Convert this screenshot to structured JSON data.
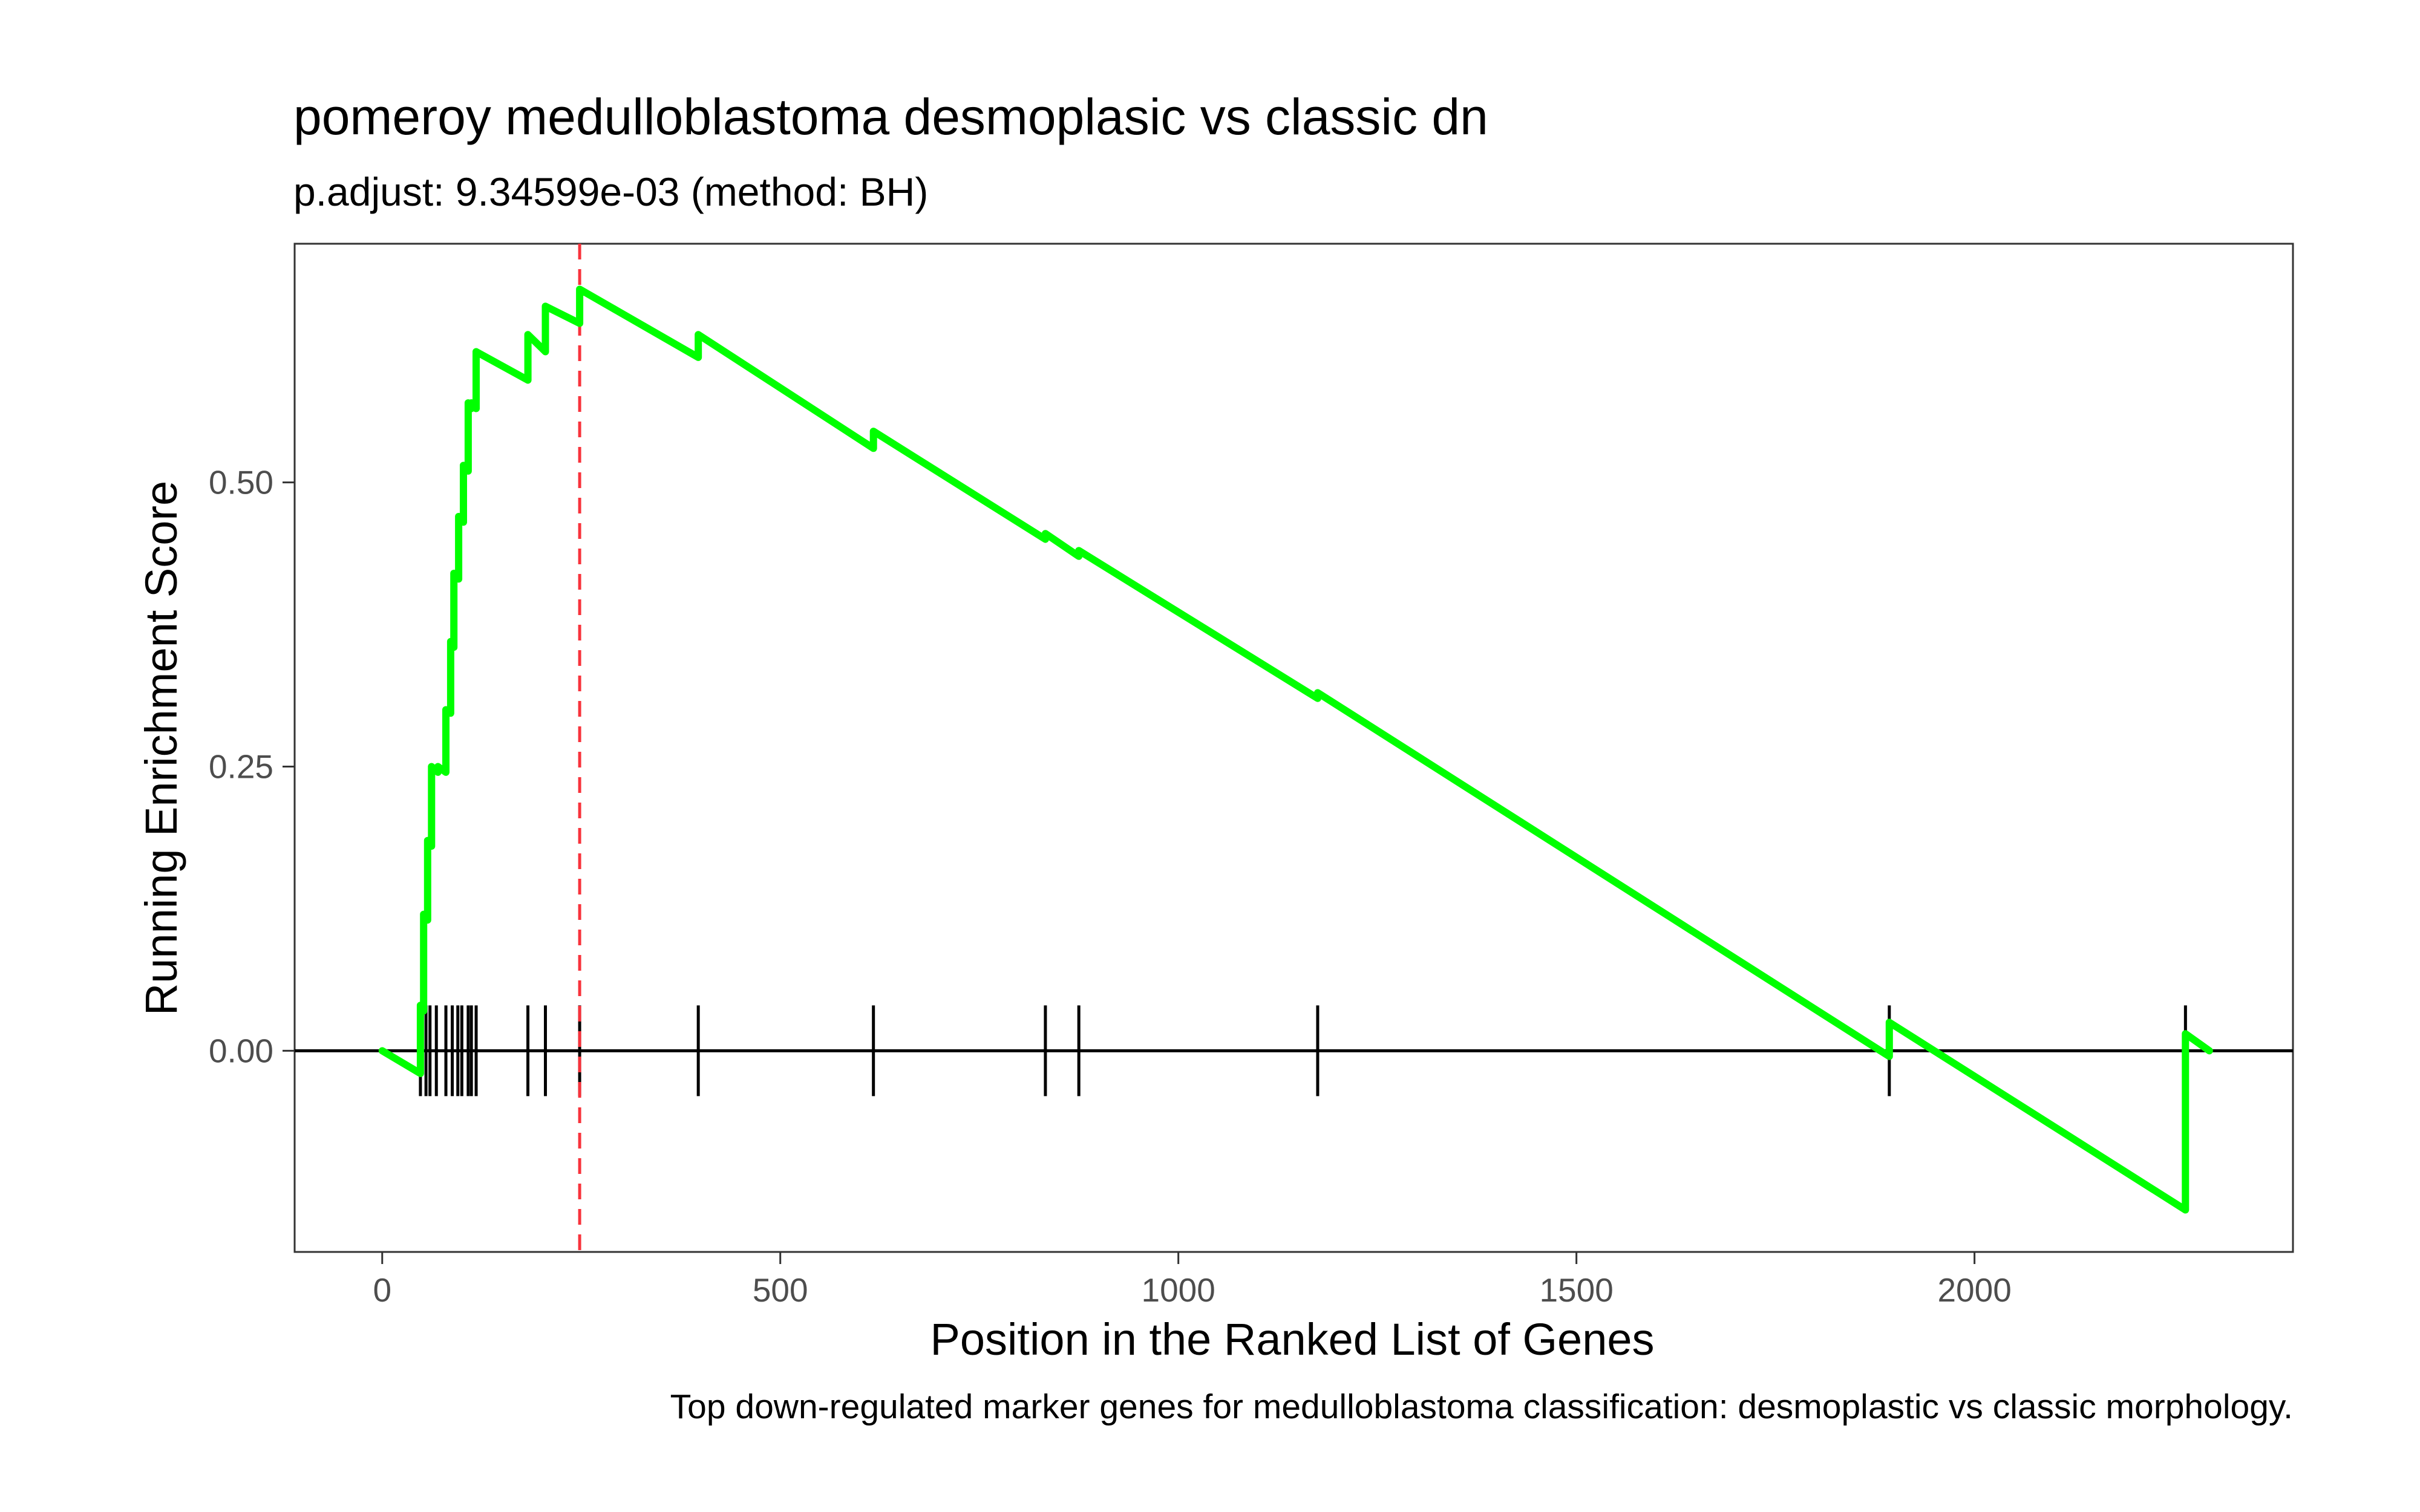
{
  "chart_data": {
    "type": "line",
    "title": "pomeroy medulloblastoma desmoplasic vs classic dn",
    "subtitle": "p.adjust: 9.34599e-03 (method: BH)",
    "xlabel": "Position in the Ranked List of Genes",
    "ylabel": "Running Enrichment Score",
    "caption": "Top down-regulated marker genes for medulloblastoma classification: desmoplastic vs classic morphology.",
    "xlim": [
      -110,
      2400
    ],
    "ylim": [
      -0.177,
      0.71
    ],
    "x_ticks": [
      {
        "value": 0,
        "label": "0"
      },
      {
        "value": 500,
        "label": "500"
      },
      {
        "value": 1000,
        "label": "1000"
      },
      {
        "value": 1500,
        "label": "1500"
      },
      {
        "value": 2000,
        "label": "2000"
      }
    ],
    "y_ticks": [
      {
        "value": 0,
        "label": "0.00"
      },
      {
        "value": 0.25,
        "label": "0.25"
      },
      {
        "value": 0.5,
        "label": "0.50"
      }
    ],
    "grid": false,
    "line_color": "#00ff00",
    "peak_color": "#f8333c",
    "peak_position": 248,
    "hits": [
      48,
      55,
      60,
      68,
      80,
      88,
      95,
      100,
      108,
      112,
      118,
      183,
      205,
      248,
      397,
      617,
      833,
      875,
      1175,
      1893,
      2265
    ],
    "series": [
      {
        "x": [
          0,
          48,
          48,
          52,
          52,
          57,
          57,
          62,
          62,
          70,
          70,
          80,
          80,
          86,
          86,
          90,
          90,
          96,
          96,
          102,
          102,
          108,
          108,
          112,
          112,
          118,
          118,
          183,
          183,
          205,
          205,
          248,
          248,
          397,
          397,
          617,
          617,
          833,
          833,
          875,
          875,
          1175,
          1175,
          1893,
          1893,
          2265,
          2265,
          2295
        ],
        "y": [
          0.0,
          -0.02,
          0.04,
          0.035,
          0.12,
          0.115,
          0.185,
          0.18,
          0.25,
          0.245,
          0.25,
          0.245,
          0.3,
          0.297,
          0.36,
          0.355,
          0.42,
          0.415,
          0.47,
          0.465,
          0.515,
          0.51,
          0.57,
          0.565,
          0.57,
          0.565,
          0.615,
          0.59,
          0.63,
          0.615,
          0.655,
          0.64,
          0.67,
          0.61,
          0.63,
          0.53,
          0.545,
          0.45,
          0.455,
          0.435,
          0.44,
          0.31,
          0.315,
          -0.005,
          0.025,
          -0.14,
          0.015,
          0.0
        ]
      }
    ]
  }
}
